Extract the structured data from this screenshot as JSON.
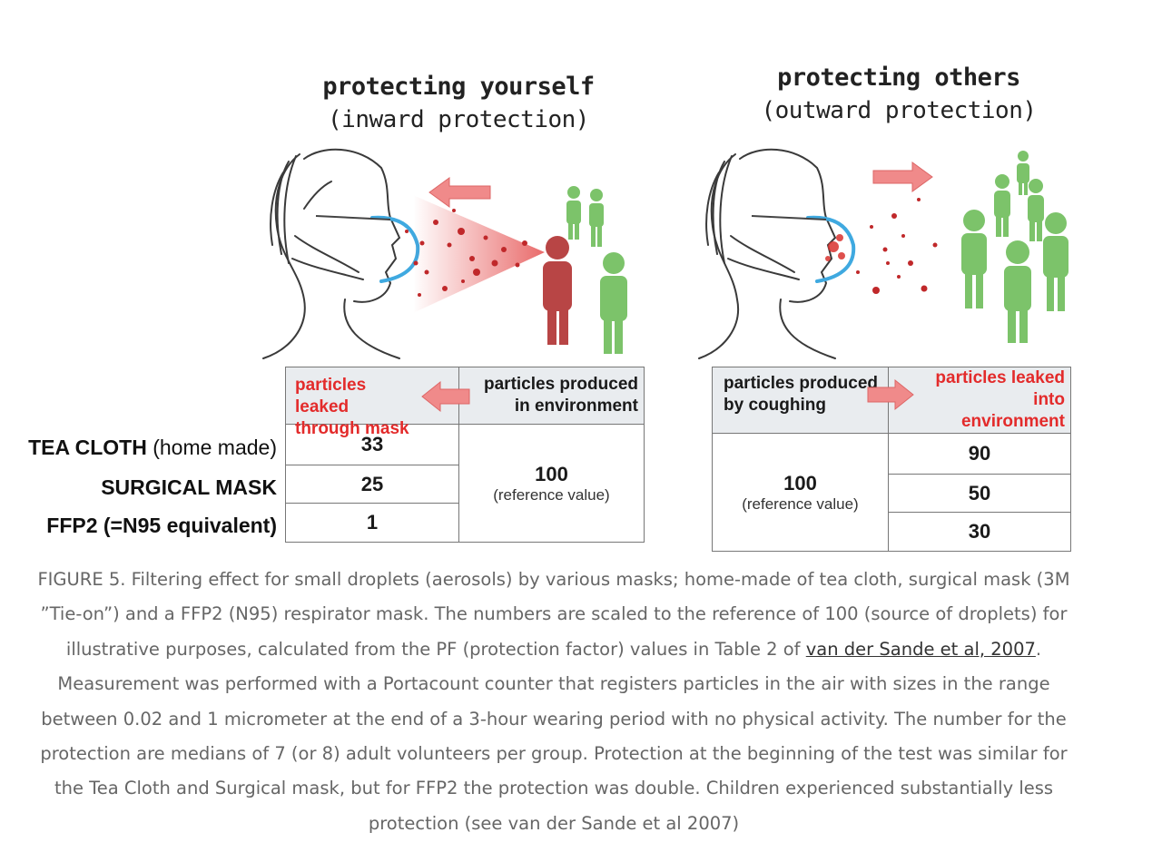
{
  "left_panel": {
    "title": "protecting yourself",
    "subtitle": "(inward protection)",
    "header_leaked": "particles leaked through mask",
    "header_produced": "particles produced in environment",
    "values": [
      "33",
      "25",
      "1"
    ],
    "reference_value": "100",
    "reference_label": "(reference value)"
  },
  "right_panel": {
    "title": "protecting others",
    "subtitle": "(outward protection)",
    "header_produced": "particles produced by coughing",
    "header_leaked": "particles leaked into environment",
    "values": [
      "90",
      "50",
      "30"
    ],
    "reference_value": "100",
    "reference_label": "(reference value)"
  },
  "mask_types": [
    {
      "name": "TEA CLOTH",
      "note": "(home made)"
    },
    {
      "name": "SURGICAL MASK",
      "note": ""
    },
    {
      "name": "FFP2 (=N95 equivalent)",
      "note": ""
    }
  ],
  "caption": {
    "part1": "FIGURE 5. Filtering effect for small droplets (aerosols) by various masks; home-made of tea cloth, surgical mask (3M ”Tie-on”) and a FFP2 (N95) respirator mask. The numbers are scaled to the reference of 100 (source of droplets) for illustrative purposes, calculated from the PF (protection factor) values in Table 2 of ",
    "link": "van der Sande et al, 2007",
    "part2": ". Measurement was performed with a Portacount counter that registers particles in the air with sizes in the range between 0.02 and 1 micrometer at the end of a 3-hour wearing period with no physical activity. The number for the protection are medians of 7 (or 8) adult volunteers per group. Protection at the beginning of the test was similar for the Tea Cloth and Surgical mask, but for FFP2 the protection was double. Children experienced substantially less protection (see van der Sande et al 2007)"
  },
  "colors": {
    "aerosol_red": "#c0282a",
    "person_red": "#b84545",
    "person_green": "#7cc36a",
    "mask_blue": "#3fa9e0",
    "arrow_pink": "#f08a8a",
    "label_red": "#e32b2b",
    "header_bg": "#e9ecef"
  }
}
